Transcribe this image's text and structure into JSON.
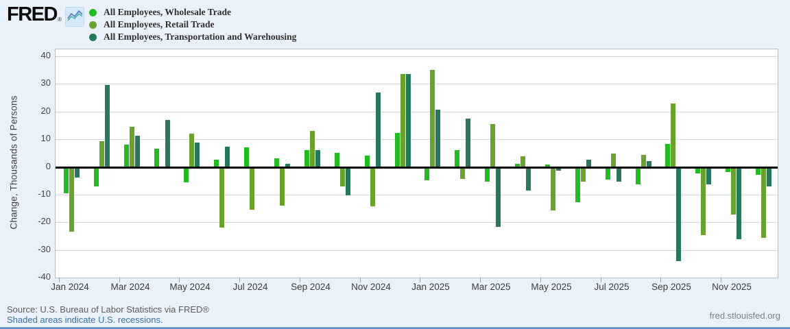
{
  "header": {
    "logo_text": "FRED",
    "registered_mark": "®"
  },
  "chart_data": {
    "type": "bar",
    "title": "",
    "xlabel": "",
    "ylabel": "Change, Thousands of Persons",
    "ylim": [
      -40,
      42.5
    ],
    "y_ticks": [
      40,
      30,
      20,
      10,
      0,
      -10,
      -20,
      -30,
      -40
    ],
    "grid": true,
    "legend_position": "top-left",
    "categories": [
      "Jan 2024",
      "Feb 2024",
      "Mar 2024",
      "Apr 2024",
      "May 2024",
      "Jun 2024",
      "Jul 2024",
      "Aug 2024",
      "Sep 2024",
      "Oct 2024",
      "Nov 2024",
      "Dec 2024",
      "Jan 2025",
      "Feb 2025",
      "Mar 2025",
      "Apr 2025",
      "May 2025",
      "Jun 2025",
      "Jul 2025",
      "Aug 2025",
      "Sep 2025",
      "Oct 2025",
      "Nov 2025",
      "Dec 2025"
    ],
    "x_tick_labels": [
      "Jan 2024",
      "Mar 2024",
      "May 2024",
      "Jul 2024",
      "Sep 2024",
      "Nov 2024",
      "Jan 2025",
      "Mar 2025",
      "May 2025",
      "Jul 2025",
      "Sep 2025",
      "Nov 2025"
    ],
    "series": [
      {
        "name": "All Employees, Wholesale Trade",
        "color": "#22bb22",
        "values": [
          -9.5,
          -7,
          8,
          6.5,
          -5.5,
          2.5,
          7,
          3,
          6,
          5,
          4,
          12.3,
          -4.8,
          6,
          -5.2,
          1.2,
          0.8,
          -12.7,
          -4.5,
          -6.3,
          8.2,
          -2.2,
          -1.7,
          -2.7
        ]
      },
      {
        "name": "All Employees, Retail Trade",
        "color": "#69a22c",
        "values": [
          -23.3,
          9.2,
          14.6,
          0,
          12.1,
          -21.7,
          -15.4,
          -13.9,
          13,
          -7,
          -14.2,
          33.5,
          35,
          -4.2,
          15.6,
          3.8,
          -15.7,
          -5.2,
          4.8,
          4.3,
          22.9,
          -24.5,
          -17.2,
          -25.6
        ]
      },
      {
        "name": "All Employees, Transportation and Warehousing",
        "color": "#27785e",
        "values": [
          -3.6,
          29.7,
          11.3,
          17,
          8.8,
          7.2,
          0,
          1.2,
          6.1,
          -10.2,
          27,
          33.7,
          20.6,
          17.6,
          -21.6,
          -8.3,
          -1.3,
          2.6,
          -5.2,
          2,
          -34,
          -6.2,
          -26.1,
          -7
        ]
      }
    ]
  },
  "footer": {
    "source": "Source: U.S. Bureau of Labor Statistics via FRED®",
    "recessions_note": "Shaded areas indicate U.S. recessions.",
    "site": "fred.stlouisfed.org"
  }
}
